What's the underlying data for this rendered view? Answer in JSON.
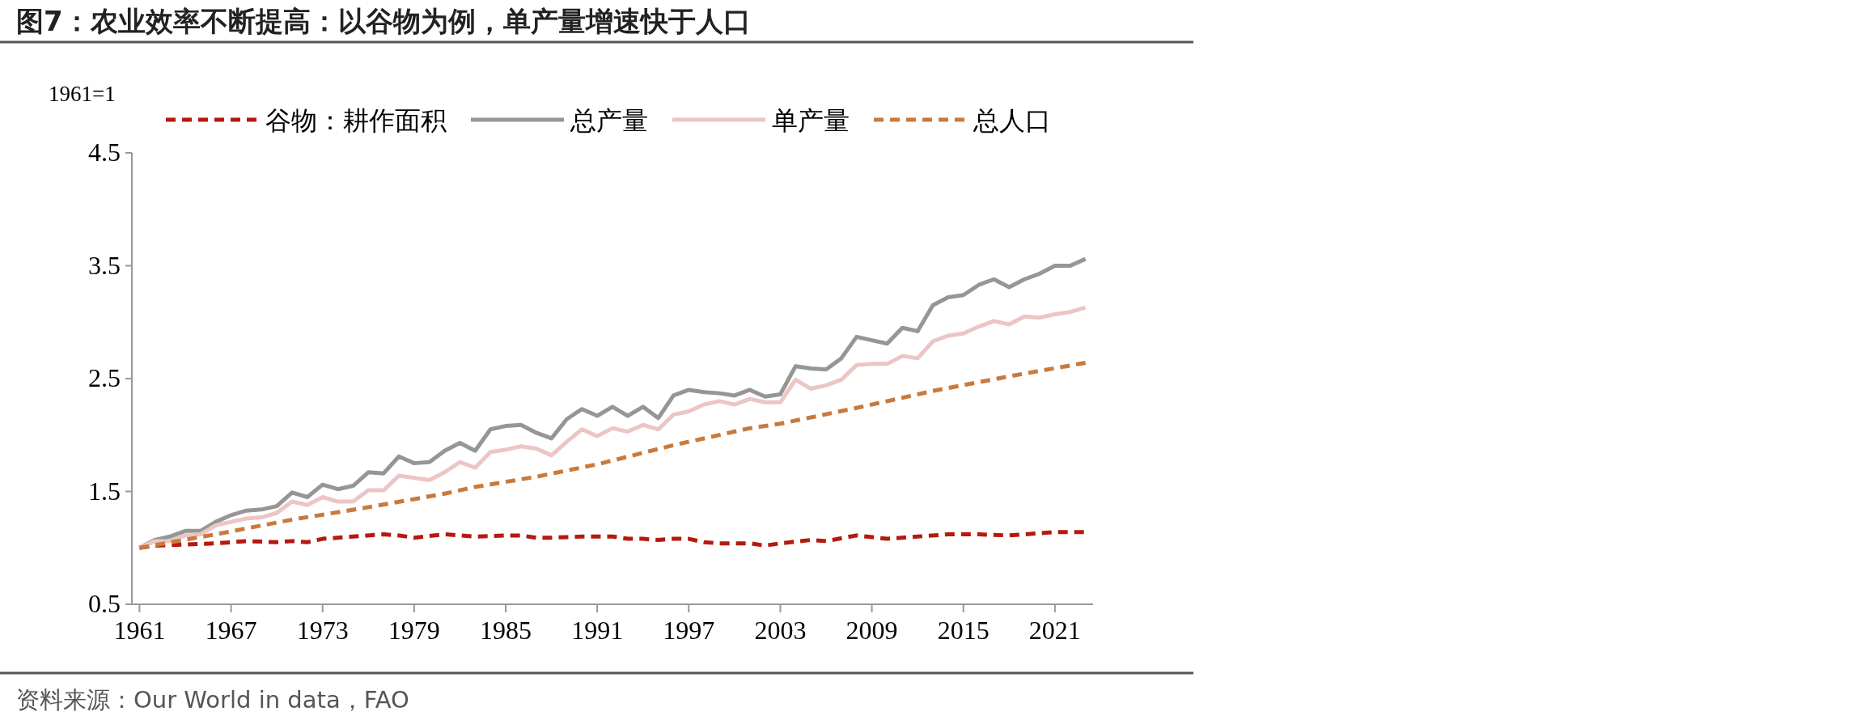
{
  "chart_data": {
    "type": "line",
    "title": "图7：农业效率不断提高：以谷物为例，单产量增速快于人口",
    "ylabel": "1961=1",
    "annotations": [
      "资料来源：Our World in data，FAO"
    ],
    "xlim": [
      1960.5,
      2023.5
    ],
    "xticks": [
      1961,
      1967,
      1973,
      1979,
      1985,
      1991,
      1997,
      2003,
      2009,
      2015,
      2021
    ],
    "ylim": [
      0.5,
      4.5
    ],
    "yticks": [
      0.5,
      1.5,
      2.5,
      3.5,
      4.5
    ],
    "grid": false,
    "legend": "top",
    "marker": "none",
    "series": [
      {
        "name": "谷物：耕作面积",
        "color": "#b5190f",
        "line_style": "dashed",
        "x": [
          1961,
          1962,
          1964,
          1966,
          1968,
          1970,
          1971,
          1972,
          1973,
          1975,
          1977,
          1978,
          1979,
          1981,
          1982,
          1983,
          1985,
          1986,
          1987,
          1988,
          1990,
          1992,
          1993,
          1994,
          1995,
          1996,
          1997,
          1998,
          1999,
          2001,
          2002,
          2003,
          2005,
          2006,
          2008,
          2010,
          2011,
          2012,
          2014,
          2016,
          2018,
          2019,
          2020,
          2021,
          2023
        ],
        "values": [
          1.0,
          1.02,
          1.03,
          1.04,
          1.06,
          1.05,
          1.06,
          1.05,
          1.08,
          1.1,
          1.12,
          1.11,
          1.09,
          1.12,
          1.11,
          1.1,
          1.11,
          1.11,
          1.09,
          1.09,
          1.1,
          1.1,
          1.08,
          1.08,
          1.07,
          1.08,
          1.08,
          1.05,
          1.04,
          1.04,
          1.02,
          1.04,
          1.07,
          1.06,
          1.11,
          1.08,
          1.09,
          1.1,
          1.12,
          1.12,
          1.11,
          1.12,
          1.13,
          1.14,
          1.14
        ]
      },
      {
        "name": "总产量",
        "color": "#969696",
        "line_style": "solid",
        "x": [
          1961,
          1962,
          1963,
          1964,
          1965,
          1966,
          1967,
          1968,
          1969,
          1970,
          1971,
          1972,
          1973,
          1974,
          1975,
          1976,
          1977,
          1978,
          1979,
          1980,
          1981,
          1982,
          1983,
          1984,
          1985,
          1986,
          1987,
          1988,
          1989,
          1990,
          1991,
          1992,
          1993,
          1994,
          1995,
          1996,
          1997,
          1998,
          1999,
          2000,
          2001,
          2002,
          2003,
          2004,
          2005,
          2006,
          2007,
          2008,
          2009,
          2010,
          2011,
          2012,
          2013,
          2014,
          2015,
          2016,
          2017,
          2018,
          2019,
          2020,
          2021,
          2022,
          2023
        ],
        "values": [
          1.0,
          1.07,
          1.1,
          1.15,
          1.15,
          1.23,
          1.29,
          1.33,
          1.34,
          1.37,
          1.49,
          1.45,
          1.56,
          1.52,
          1.55,
          1.67,
          1.66,
          1.81,
          1.75,
          1.76,
          1.86,
          1.93,
          1.86,
          2.05,
          2.08,
          2.09,
          2.02,
          1.97,
          2.14,
          2.23,
          2.17,
          2.25,
          2.17,
          2.25,
          2.15,
          2.35,
          2.4,
          2.38,
          2.37,
          2.35,
          2.4,
          2.34,
          2.36,
          2.61,
          2.59,
          2.58,
          2.68,
          2.87,
          2.84,
          2.81,
          2.95,
          2.92,
          3.15,
          3.22,
          3.24,
          3.33,
          3.38,
          3.31,
          3.38,
          3.43,
          3.5,
          3.5,
          3.56
        ]
      },
      {
        "name": "单产量",
        "color": "#ecc5c5",
        "line_style": "solid",
        "x": [
          1961,
          1962,
          1963,
          1964,
          1965,
          1966,
          1967,
          1968,
          1969,
          1970,
          1971,
          1972,
          1973,
          1974,
          1975,
          1976,
          1977,
          1978,
          1979,
          1980,
          1981,
          1982,
          1983,
          1984,
          1985,
          1986,
          1987,
          1988,
          1989,
          1990,
          1991,
          1992,
          1993,
          1994,
          1995,
          1996,
          1997,
          1998,
          1999,
          2000,
          2001,
          2002,
          2003,
          2004,
          2005,
          2006,
          2007,
          2008,
          2009,
          2010,
          2011,
          2012,
          2013,
          2014,
          2015,
          2016,
          2017,
          2018,
          2019,
          2020,
          2021,
          2022,
          2023
        ],
        "values": [
          1.0,
          1.06,
          1.06,
          1.11,
          1.12,
          1.2,
          1.23,
          1.26,
          1.27,
          1.31,
          1.41,
          1.38,
          1.45,
          1.41,
          1.41,
          1.51,
          1.51,
          1.64,
          1.62,
          1.6,
          1.67,
          1.76,
          1.71,
          1.85,
          1.87,
          1.9,
          1.88,
          1.82,
          1.94,
          2.05,
          1.99,
          2.06,
          2.03,
          2.09,
          2.05,
          2.18,
          2.21,
          2.27,
          2.3,
          2.27,
          2.32,
          2.29,
          2.29,
          2.49,
          2.41,
          2.44,
          2.49,
          2.62,
          2.63,
          2.63,
          2.7,
          2.68,
          2.83,
          2.88,
          2.9,
          2.96,
          3.01,
          2.98,
          3.05,
          3.04,
          3.07,
          3.09,
          3.13
        ]
      },
      {
        "name": "总人口",
        "color": "#c87a3e",
        "line_style": "dashed",
        "x": [
          1961,
          1966,
          1971,
          1976,
          1981,
          1983,
          1987,
          1991,
          1996,
          2001,
          2003,
          2008,
          2013,
          2018,
          2023
        ],
        "values": [
          1.0,
          1.12,
          1.25,
          1.36,
          1.48,
          1.54,
          1.63,
          1.74,
          1.91,
          2.06,
          2.1,
          2.24,
          2.39,
          2.52,
          2.64
        ]
      }
    ]
  }
}
